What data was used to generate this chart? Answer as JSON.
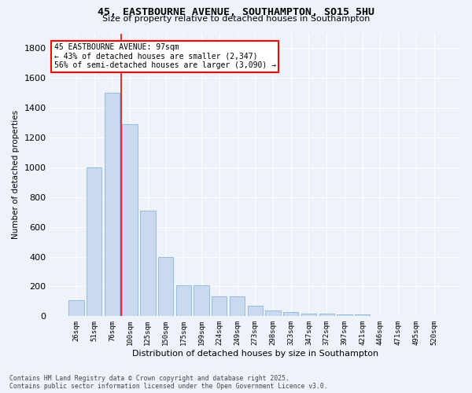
{
  "title_line1": "45, EASTBOURNE AVENUE, SOUTHAMPTON, SO15 5HU",
  "title_line2": "Size of property relative to detached houses in Southampton",
  "xlabel": "Distribution of detached houses by size in Southampton",
  "ylabel": "Number of detached properties",
  "categories": [
    "26sqm",
    "51sqm",
    "76sqm",
    "100sqm",
    "125sqm",
    "150sqm",
    "175sqm",
    "199sqm",
    "224sqm",
    "249sqm",
    "273sqm",
    "298sqm",
    "323sqm",
    "347sqm",
    "372sqm",
    "397sqm",
    "421sqm",
    "446sqm",
    "471sqm",
    "495sqm",
    "520sqm"
  ],
  "values": [
    110,
    1000,
    1500,
    1290,
    710,
    400,
    210,
    210,
    135,
    135,
    70,
    40,
    30,
    20,
    15,
    10,
    10,
    0,
    0,
    0,
    0
  ],
  "bar_color": "#c8d9f0",
  "bar_edge_color": "#8ab4d8",
  "vline_color": "red",
  "vline_pos": 2.5,
  "annotation_text": "45 EASTBOURNE AVENUE: 97sqm\n← 43% of detached houses are smaller (2,347)\n56% of semi-detached houses are larger (3,090) →",
  "annotation_box_color": "white",
  "annotation_box_edge_color": "red",
  "ylim": [
    0,
    1900
  ],
  "yticks": [
    0,
    200,
    400,
    600,
    800,
    1000,
    1200,
    1400,
    1600,
    1800
  ],
  "footer_line1": "Contains HM Land Registry data © Crown copyright and database right 2025.",
  "footer_line2": "Contains public sector information licensed under the Open Government Licence v3.0.",
  "background_color": "#eef2fa",
  "grid_color": "white"
}
